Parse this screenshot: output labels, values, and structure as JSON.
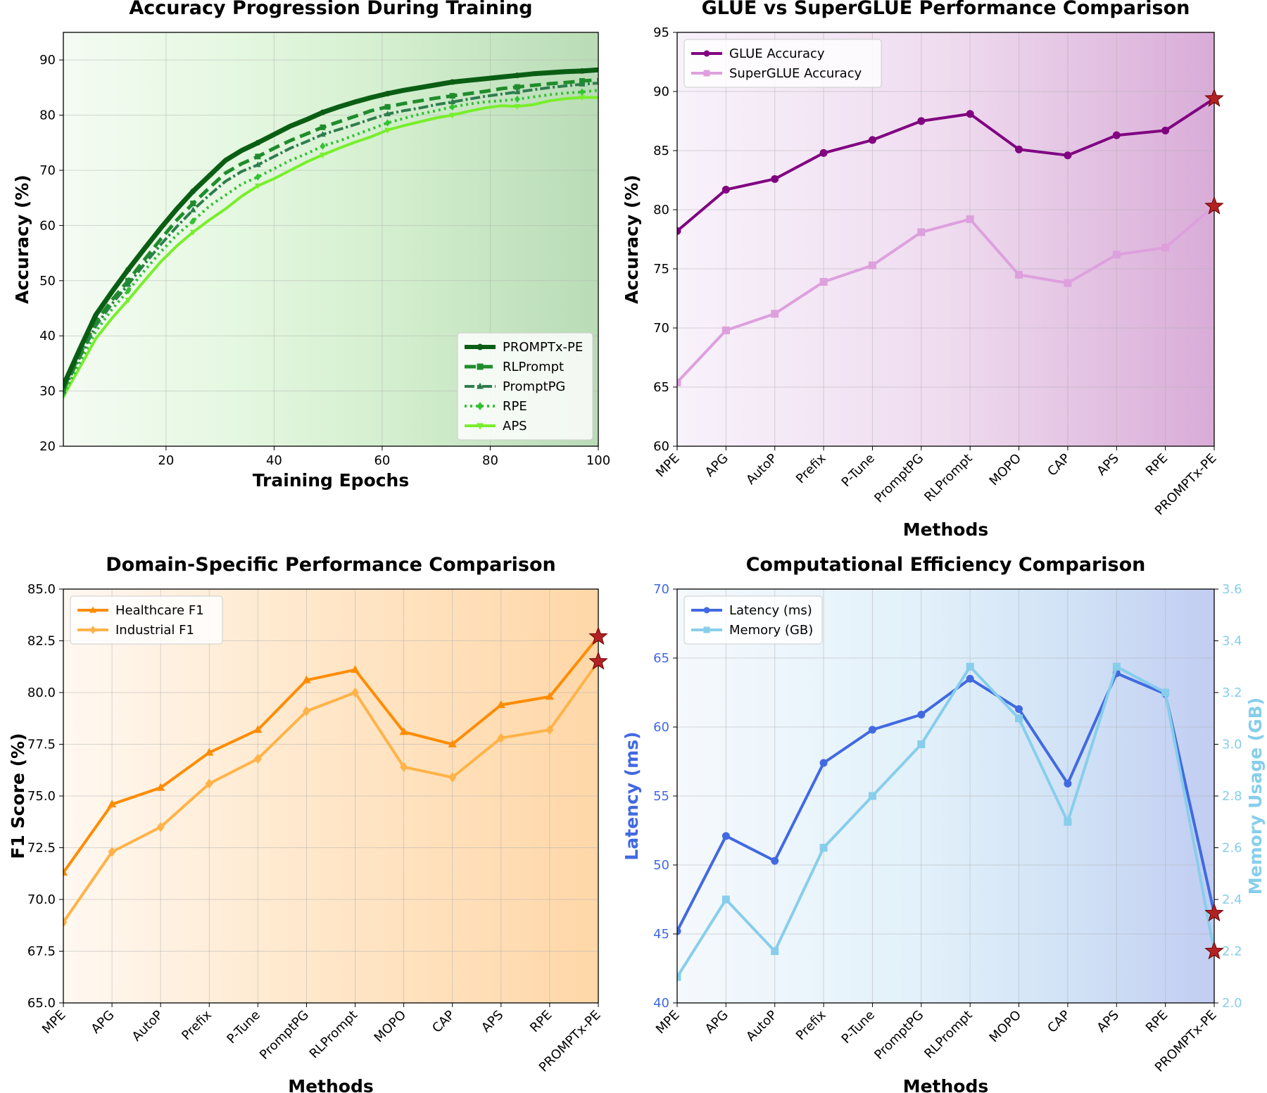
{
  "chart_data": [
    {
      "id": "training",
      "type": "line",
      "title": "Accuracy Progression During Training",
      "xlabel": "Training Epochs",
      "ylabel": "Accuracy (%)",
      "xlim": [
        1,
        100
      ],
      "ylim": [
        20,
        95
      ],
      "xticks": [
        20,
        40,
        60,
        80,
        100
      ],
      "yticks": [
        20,
        30,
        40,
        50,
        60,
        70,
        80,
        90
      ],
      "legend_position": "bottom-right",
      "x": [
        1,
        4,
        7,
        10,
        13,
        16,
        19,
        22,
        25,
        28,
        31,
        34,
        37,
        40,
        43,
        46,
        49,
        52,
        55,
        58,
        61,
        64,
        67,
        70,
        73,
        76,
        79,
        82,
        85,
        88,
        91,
        94,
        97,
        100
      ],
      "series": [
        {
          "name": "PROMPTx-PE",
          "color": "#0a5e14",
          "width": 7,
          "dash": "",
          "marker": "circle",
          "values": [
            31.0,
            37.5,
            43.8,
            48.0,
            52.0,
            55.8,
            59.5,
            63.0,
            66.2,
            69.0,
            71.8,
            73.6,
            75.0,
            76.5,
            78.0,
            79.2,
            80.5,
            81.5,
            82.4,
            83.2,
            83.9,
            84.5,
            85.0,
            85.5,
            86.0,
            86.3,
            86.6,
            86.9,
            87.2,
            87.5,
            87.7,
            87.9,
            88.0,
            88.2
          ]
        },
        {
          "name": "RLPrompt",
          "color": "#1f8c2c",
          "width": 5,
          "dash": "16,8",
          "marker": "square",
          "values": [
            30.5,
            36.5,
            42.5,
            46.5,
            50.0,
            53.8,
            57.5,
            61.0,
            64.0,
            66.8,
            69.5,
            71.2,
            72.5,
            74.0,
            75.4,
            76.6,
            77.8,
            78.8,
            79.8,
            80.8,
            81.5,
            82.1,
            82.6,
            83.1,
            83.5,
            83.9,
            84.3,
            84.8,
            85.1,
            85.4,
            85.7,
            85.9,
            86.2,
            86.4
          ]
        },
        {
          "name": "PromptPG",
          "color": "#2e7d4f",
          "width": 4,
          "dash": "14,4,3,4",
          "marker": "triangle",
          "values": [
            30.0,
            36.0,
            41.8,
            45.8,
            49.3,
            53.0,
            56.5,
            59.8,
            62.8,
            65.5,
            68.0,
            69.8,
            71.0,
            72.5,
            74.0,
            75.2,
            76.5,
            77.4,
            78.3,
            79.3,
            80.2,
            80.8,
            81.3,
            81.9,
            82.4,
            82.9,
            83.4,
            83.8,
            84.2,
            84.6,
            85.0,
            85.3,
            85.6,
            85.8
          ]
        },
        {
          "name": "RPE",
          "color": "#34c134",
          "width": 4,
          "dash": "3,5",
          "marker": "diamond",
          "values": [
            29.5,
            35.0,
            40.8,
            44.8,
            48.2,
            51.8,
            55.2,
            58.3,
            60.8,
            63.5,
            65.5,
            67.5,
            68.8,
            70.3,
            71.8,
            73.0,
            74.4,
            75.3,
            76.4,
            77.5,
            78.6,
            79.4,
            80.2,
            80.8,
            81.5,
            82.0,
            82.4,
            82.6,
            82.9,
            83.3,
            83.7,
            84.0,
            84.2,
            84.5
          ]
        },
        {
          "name": "APS",
          "color": "#78ee2c",
          "width": 4,
          "dash": "",
          "marker": "tri-down",
          "values": [
            29.0,
            34.2,
            39.5,
            43.2,
            46.5,
            50.0,
            53.4,
            56.3,
            58.8,
            61.0,
            63.0,
            65.3,
            67.2,
            68.5,
            70.0,
            71.5,
            72.8,
            74.0,
            75.1,
            76.1,
            77.3,
            78.1,
            78.8,
            79.5,
            80.0,
            80.7,
            81.3,
            81.7,
            81.6,
            81.9,
            82.6,
            83.0,
            83.2,
            83.2
          ]
        }
      ]
    },
    {
      "id": "glue",
      "type": "line",
      "title": "GLUE vs SuperGLUE Performance Comparison",
      "xlabel": "Methods",
      "ylabel": "Accuracy (%)",
      "categories": [
        "MPE",
        "APG",
        "AutoP",
        "Prefix",
        "P-Tune",
        "PromptPG",
        "RLPrompt",
        "MOPO",
        "CAP",
        "APS",
        "RPE",
        "PROMPTx-PE"
      ],
      "ylim": [
        60,
        95
      ],
      "yticks": [
        60,
        65,
        70,
        75,
        80,
        85,
        90,
        95
      ],
      "legend_position": "top-left",
      "series": [
        {
          "name": "GLUE Accuracy",
          "color": "#800080",
          "marker": "circle",
          "values": [
            78.2,
            81.7,
            82.6,
            84.8,
            85.9,
            87.5,
            88.1,
            85.1,
            84.6,
            86.3,
            86.7,
            89.4
          ]
        },
        {
          "name": "SuperGLUE Accuracy",
          "color": "#dda0dd",
          "marker": "square",
          "values": [
            65.4,
            69.8,
            71.2,
            73.9,
            75.3,
            78.1,
            79.2,
            74.5,
            73.8,
            76.2,
            76.8,
            80.3
          ]
        }
      ]
    },
    {
      "id": "domain",
      "type": "line",
      "title": "Domain-Specific Performance Comparison",
      "xlabel": "Methods",
      "ylabel": "F1 Score (%)",
      "categories": [
        "MPE",
        "APG",
        "AutoP",
        "Prefix",
        "P-Tune",
        "PromptPG",
        "RLPrompt",
        "MOPO",
        "CAP",
        "APS",
        "RPE",
        "PROMPTx-PE"
      ],
      "ylim": [
        65.0,
        85.0
      ],
      "yticks": [
        65.0,
        67.5,
        70.0,
        72.5,
        75.0,
        77.5,
        80.0,
        82.5,
        85.0
      ],
      "yticklabels": [
        "65.0",
        "67.5",
        "70.0",
        "72.5",
        "75.0",
        "77.5",
        "80.0",
        "82.5",
        "85.0"
      ],
      "legend_position": "top-left",
      "series": [
        {
          "name": "Healthcare F1",
          "color": "#ff8c00",
          "marker": "triangle",
          "values": [
            71.3,
            74.6,
            75.4,
            77.1,
            78.2,
            80.6,
            81.1,
            78.1,
            77.5,
            79.4,
            79.8,
            82.7
          ]
        },
        {
          "name": "Industrial F1",
          "color": "#ffb347",
          "marker": "diamond",
          "values": [
            68.9,
            72.3,
            73.5,
            75.6,
            76.8,
            79.1,
            80.0,
            76.4,
            75.9,
            77.8,
            78.2,
            81.5
          ]
        }
      ]
    },
    {
      "id": "efficiency",
      "type": "line",
      "title": "Computational Efficiency Comparison",
      "xlabel": "Methods",
      "ylabel": "Latency (ms)",
      "ylabel_right": "Memory Usage (GB)",
      "categories": [
        "MPE",
        "APG",
        "AutoP",
        "Prefix",
        "P-Tune",
        "PromptPG",
        "RLPrompt",
        "MOPO",
        "CAP",
        "APS",
        "RPE",
        "PROMPTx-PE"
      ],
      "ylim": [
        40,
        70
      ],
      "yticks": [
        40,
        45,
        50,
        55,
        60,
        65,
        70
      ],
      "ylim_right": [
        2.0,
        3.6
      ],
      "yticks_right": [
        2.0,
        2.2,
        2.4,
        2.6,
        2.8,
        3.0,
        3.2,
        3.4,
        3.6
      ],
      "yticklabels_right": [
        "2.0",
        "2.2",
        "2.4",
        "2.6",
        "2.8",
        "3.0",
        "3.2",
        "3.4",
        "3.6"
      ],
      "legend_position": "top-left",
      "series": [
        {
          "name": "Latency (ms)",
          "color": "#4169e1",
          "marker": "circle",
          "axis": "left",
          "values": [
            45.2,
            52.1,
            50.3,
            57.4,
            59.8,
            60.9,
            63.5,
            61.3,
            55.9,
            63.9,
            62.4,
            46.5
          ]
        },
        {
          "name": "Memory (GB)",
          "color": "#87ceeb",
          "marker": "square",
          "axis": "right",
          "values": [
            2.1,
            2.4,
            2.2,
            2.6,
            2.8,
            3.0,
            3.3,
            3.1,
            2.7,
            3.3,
            3.2,
            2.2
          ]
        }
      ]
    }
  ],
  "colors": {
    "star": "#b22222",
    "tick_blue": "#4169e1",
    "tick_skyblue": "#87ceeb"
  }
}
